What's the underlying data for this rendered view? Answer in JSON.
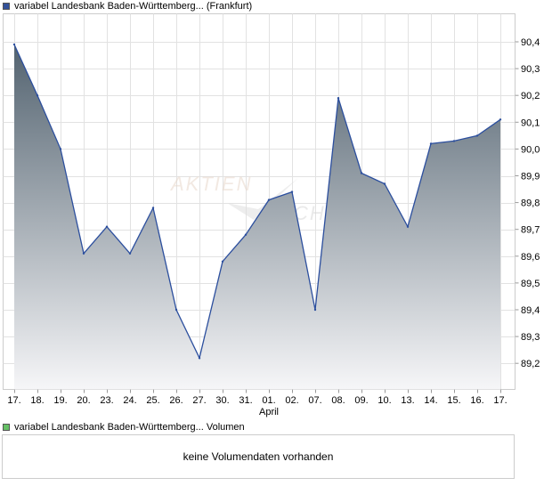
{
  "legend_price": {
    "label": "variabel Landesbank Baden-Württemberg... (Frankfurt)",
    "color": "#33529a"
  },
  "legend_volume": {
    "label": "variabel Landesbank Baden-Württemberg... Volumen",
    "color": "#66c066"
  },
  "volume_panel": {
    "message": "keine Volumendaten vorhanden"
  },
  "watermark": {
    "line1": "AKTIEN",
    "line2": "CHECK"
  },
  "chart_data": {
    "type": "area",
    "x": [
      "17.",
      "18.",
      "19.",
      "20.",
      "23.",
      "24.",
      "25.",
      "26.",
      "27.",
      "30.",
      "31.",
      "01.",
      "02.",
      "07.",
      "08.",
      "09.",
      "10.",
      "13.",
      "14.",
      "15.",
      "16.",
      "17."
    ],
    "x_month_labels": [
      {
        "index": 11,
        "label": "April"
      }
    ],
    "series": [
      {
        "values": [
          90.39,
          90.2,
          90.0,
          89.61,
          89.71,
          89.61,
          89.78,
          89.4,
          89.22,
          89.58,
          89.68,
          89.81,
          89.84,
          89.4,
          90.19,
          89.91,
          89.87,
          89.71,
          90.02,
          90.03,
          90.05,
          90.11
        ],
        "line_color": "#2c4f9e",
        "fill_top": "#536370",
        "fill_bottom": "#f6f6f8"
      }
    ],
    "yticks": [
      "90,4",
      "90,3",
      "90,2",
      "90,1",
      "90,0",
      "89,9",
      "89,8",
      "89,7",
      "89,6",
      "89,5",
      "89,4",
      "89,3",
      "89,2"
    ],
    "ylim": [
      89.1,
      90.45
    ],
    "grid": true,
    "title": "",
    "xlabel": "",
    "ylabel": ""
  }
}
